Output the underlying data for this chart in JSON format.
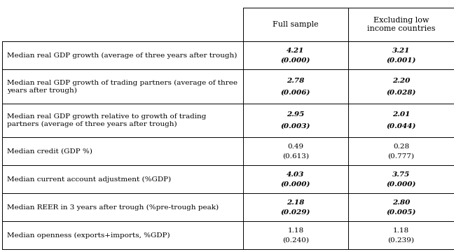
{
  "col_headers": [
    "Full sample",
    "Excluding low\nincome countries"
  ],
  "rows": [
    {
      "label": "Median real GDP growth (average of three years after trough)",
      "values": [
        "4.21",
        "(0.000)",
        "3.21",
        "(0.001)"
      ],
      "bold": true
    },
    {
      "label": "Median real GDP growth of trading partners (average of three\nyears after trough)",
      "values": [
        "2.78",
        "(0.006)",
        "2.20",
        "(0.028)"
      ],
      "bold": true
    },
    {
      "label": "Median real GDP growth relative to growth of trading\npartners (average of three years after trough)",
      "values": [
        "2.95",
        "(0.003)",
        "2.01",
        "(0.044)"
      ],
      "bold": true
    },
    {
      "label": "Median credit (GDP %)",
      "values": [
        "0.49",
        "(0.613)",
        "0.28",
        "(0.777)"
      ],
      "bold": false
    },
    {
      "label": "Median current account adjustment (%GDP)",
      "values": [
        "4.03",
        "(0.000)",
        "3.75",
        "(0.000)"
      ],
      "bold": true
    },
    {
      "label": "Median REER in 3 years after trough (%pre-trough peak)",
      "values": [
        "2.18",
        "(0.029)",
        "2.80",
        "(0.005)"
      ],
      "bold": true
    },
    {
      "label": "Median openness (exports+imports, %GDP)",
      "values": [
        "1.18",
        "(0.240)",
        "1.18",
        "(0.239)"
      ],
      "bold": false
    }
  ],
  "background_color": "#ffffff",
  "line_color": "#000000",
  "text_color": "#000000",
  "header_fontsize": 8.0,
  "body_fontsize": 7.5,
  "label_fontsize": 7.5
}
